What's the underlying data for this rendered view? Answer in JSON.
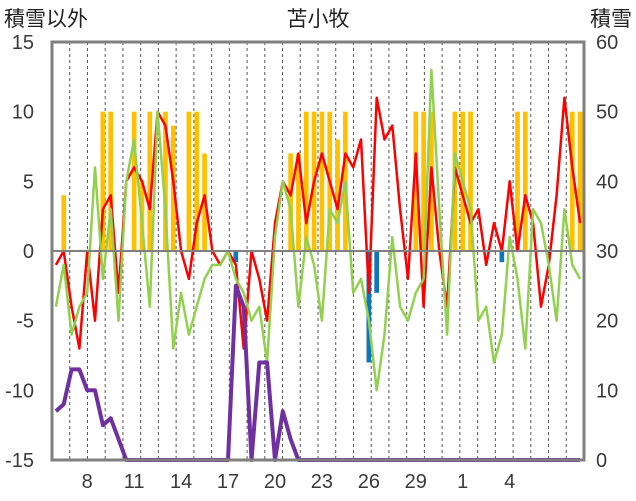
{
  "chart_data": {
    "type": "bar+line",
    "title": "苫小牧",
    "left_axis": {
      "label": "積雪以外",
      "min": -15,
      "max": 15,
      "ticks": [
        15,
        10,
        5,
        0,
        -5,
        -10,
        -15
      ]
    },
    "right_axis": {
      "label": "積雪",
      "min": 0,
      "max": 60,
      "ticks": [
        60,
        50,
        40,
        30,
        20,
        10,
        0
      ]
    },
    "x_axis": {
      "n": 68,
      "tick_labels": [
        {
          "i": 4,
          "label": "8"
        },
        {
          "i": 10,
          "label": "11"
        },
        {
          "i": 16,
          "label": "14"
        },
        {
          "i": 22,
          "label": "17"
        },
        {
          "i": 28,
          "label": "20"
        },
        {
          "i": 34,
          "label": "23"
        },
        {
          "i": 40,
          "label": "26"
        },
        {
          "i": 46,
          "label": "29"
        },
        {
          "i": 52,
          "label": "1"
        },
        {
          "i": 58,
          "label": "4"
        }
      ]
    },
    "grid": "vertical dashed",
    "colors": {
      "orange_bars": "#ffc000",
      "blue_bars": "#0f75bc",
      "red_line": "#ff0000",
      "green_line": "#92d050",
      "purple_line": "#7030a0",
      "axis": "#7f7f7f"
    },
    "series": [
      {
        "axis": "left",
        "type": "bar",
        "color": "#ffc000",
        "values": [
          0,
          4,
          0,
          0,
          0,
          0,
          10,
          10,
          0,
          0,
          10,
          5,
          10,
          0,
          10,
          9,
          0,
          10,
          10,
          7,
          0,
          0,
          0,
          0,
          0,
          0,
          0,
          0,
          0,
          0,
          7,
          7,
          10,
          10,
          10,
          10,
          8,
          10,
          0,
          0,
          0,
          0,
          0,
          0,
          0,
          0,
          10,
          10,
          10,
          0,
          0,
          10,
          10,
          10,
          0,
          0,
          0,
          0,
          0,
          10,
          10,
          0,
          0,
          0,
          0,
          0,
          10,
          10
        ]
      },
      {
        "axis": "left",
        "type": "bar",
        "color": "#0f75bc",
        "values": [
          0,
          0,
          0,
          0,
          0,
          0,
          0,
          0,
          0,
          0,
          0,
          0,
          0,
          0,
          0,
          0,
          0,
          0,
          0,
          0,
          0,
          0,
          0,
          -0.8,
          0,
          0,
          0,
          0,
          0,
          0,
          0,
          0,
          0,
          0,
          0,
          0,
          0,
          0,
          0,
          0,
          -8,
          -3,
          0,
          0,
          0,
          0,
          0,
          0,
          0,
          0,
          0,
          0,
          0,
          0,
          0,
          0,
          0,
          -0.8,
          0,
          0,
          0,
          0,
          0,
          0,
          0,
          0,
          0,
          0
        ]
      },
      {
        "axis": "left",
        "type": "line",
        "color": "#ff0000",
        "values": [
          -1,
          0,
          -4,
          -7,
          0,
          -5,
          3,
          4,
          -3,
          5,
          6,
          5,
          3,
          10,
          9,
          5,
          0,
          -2,
          2,
          4,
          0,
          -1,
          0,
          -1,
          -7,
          0,
          -2,
          -5,
          2,
          5,
          4,
          7,
          2,
          5,
          7,
          5,
          3,
          7,
          6,
          8,
          -3,
          11,
          8,
          9,
          3,
          -2,
          7,
          -4,
          6,
          0,
          -4,
          6,
          4,
          2,
          3,
          -1,
          2,
          0,
          5,
          0,
          4,
          2,
          -4,
          -1,
          4,
          11,
          6,
          2
        ]
      },
      {
        "axis": "left",
        "type": "line",
        "color": "#92d050",
        "values": [
          -4,
          -1,
          -6,
          -4,
          -3,
          6,
          -2,
          3,
          -5,
          5,
          8,
          2,
          -4,
          10,
          3,
          -7,
          -3,
          -6,
          -4,
          -2,
          -1,
          -1,
          0,
          -2,
          -3,
          -5,
          -4,
          -8,
          1,
          5,
          3,
          -4,
          1,
          -1,
          -5,
          3,
          2,
          5,
          -3,
          -2,
          -5,
          -10,
          -6,
          1,
          -4,
          -5,
          -3,
          -2,
          13,
          3,
          -6,
          7,
          5,
          3,
          -5,
          -4,
          -8,
          -6,
          1,
          -2,
          -7,
          3,
          2,
          -1,
          -5,
          3,
          -1,
          -2
        ]
      },
      {
        "axis": "right",
        "type": "line",
        "color": "#7030a0",
        "values": [
          7,
          8,
          13,
          13,
          10,
          10,
          5,
          6,
          3,
          0,
          0,
          0,
          0,
          0,
          0,
          0,
          0,
          0,
          0,
          0,
          0,
          0,
          0,
          25,
          22,
          0,
          14,
          14,
          0,
          7,
          3,
          0,
          0,
          0,
          0,
          0,
          0,
          0,
          0,
          0,
          0,
          0,
          0,
          0,
          0,
          0,
          0,
          0,
          0,
          0,
          0,
          0,
          0,
          0,
          0,
          0,
          0,
          0,
          0,
          0,
          0,
          0,
          0,
          0,
          0,
          0,
          0,
          0
        ]
      }
    ]
  }
}
